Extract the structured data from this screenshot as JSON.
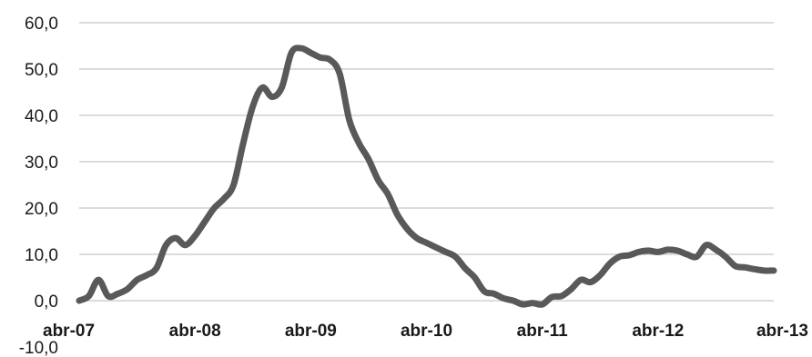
{
  "chart_data": {
    "type": "line",
    "title": "",
    "xlabel": "",
    "ylabel": "",
    "ylim": [
      -10,
      60
    ],
    "yticks": [
      -10,
      0,
      10,
      20,
      30,
      40,
      50,
      60
    ],
    "ytick_labels": [
      "-10,0",
      "0,0",
      "10,0",
      "20,0",
      "30,0",
      "40,0",
      "50,0",
      "60,0"
    ],
    "xticks": [
      "2007-04",
      "2008-04",
      "2009-04",
      "2010-04",
      "2011-04",
      "2012-04",
      "2013-04"
    ],
    "xtick_labels": [
      "abr-07",
      "abr-08",
      "abr-09",
      "abr-10",
      "abr-11",
      "abr-12",
      "abr-13"
    ],
    "grid": true,
    "legend": "none",
    "colors": {
      "series": "#595959",
      "grid": "#c8c8c8",
      "text": "#1a1a1a"
    },
    "series": [
      {
        "x": [
          "2007-04",
          "2007-05",
          "2007-06",
          "2007-07",
          "2007-08",
          "2007-09",
          "2007-10",
          "2007-11",
          "2007-12",
          "2008-01",
          "2008-02",
          "2008-03",
          "2008-04",
          "2008-05",
          "2008-06",
          "2008-07",
          "2008-08",
          "2008-09",
          "2008-10",
          "2008-11",
          "2008-12",
          "2009-01",
          "2009-02",
          "2009-03",
          "2009-04",
          "2009-05",
          "2009-06",
          "2009-07",
          "2009-08",
          "2009-09",
          "2009-10",
          "2009-11",
          "2009-12",
          "2010-01",
          "2010-02",
          "2010-03",
          "2010-04",
          "2010-05",
          "2010-06",
          "2010-07",
          "2010-08",
          "2010-09",
          "2010-10",
          "2010-11",
          "2010-12",
          "2011-01",
          "2011-02",
          "2011-03",
          "2011-04",
          "2011-05",
          "2011-06",
          "2011-07",
          "2011-08",
          "2011-09",
          "2011-10",
          "2011-11",
          "2011-12",
          "2012-01",
          "2012-02",
          "2012-03",
          "2012-04",
          "2012-05",
          "2012-06",
          "2012-07",
          "2012-08",
          "2012-09",
          "2012-10",
          "2012-11",
          "2012-12",
          "2013-01",
          "2013-02",
          "2013-03",
          "2013-04"
        ],
        "values": [
          0.0,
          1.0,
          4.5,
          1.0,
          1.5,
          2.5,
          4.5,
          5.5,
          7.0,
          12.0,
          13.5,
          12.0,
          14.0,
          17.0,
          20.0,
          22.0,
          25.0,
          34.0,
          42.0,
          46.0,
          44.0,
          46.0,
          53.5,
          54.5,
          53.5,
          52.5,
          52.0,
          49.0,
          39.0,
          34.0,
          30.5,
          26.0,
          23.0,
          18.5,
          15.5,
          13.5,
          12.5,
          11.5,
          10.5,
          9.5,
          7.0,
          5.0,
          2.0,
          1.5,
          0.5,
          0.0,
          -0.8,
          -0.5,
          -0.8,
          0.8,
          1.0,
          2.5,
          4.5,
          4.0,
          5.5,
          8.0,
          9.5,
          9.8,
          10.5,
          10.8,
          10.5,
          11.0,
          10.8,
          10.0,
          9.5,
          12.0,
          11.0,
          9.5,
          7.5,
          7.2,
          6.8,
          6.5,
          6.5
        ]
      }
    ]
  }
}
